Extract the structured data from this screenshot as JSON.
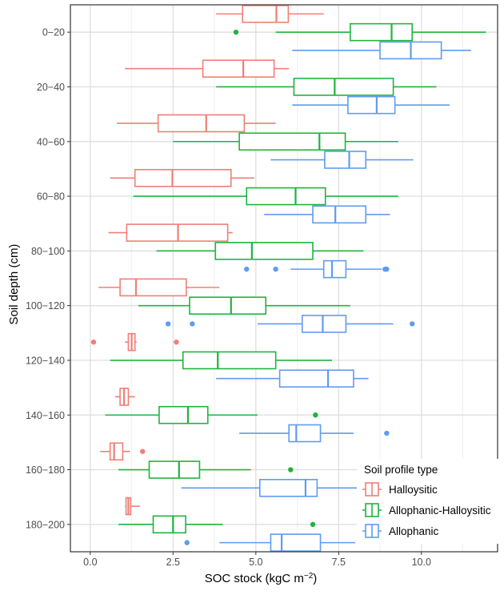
{
  "chart_data": {
    "type": "boxplot",
    "orientation": "horizontal",
    "xlabel_main": "SOC stock (kgC m",
    "xlabel_exp": "−2",
    "xlabel_close": ")",
    "ylabel": "Soil depth (cm)",
    "xlim": [
      -0.6,
      12.3
    ],
    "xticks": [
      0.0,
      2.5,
      5.0,
      7.5,
      10.0
    ],
    "xtick_labels": [
      "0.0",
      "2.5",
      "5.0",
      "7.5",
      "10.0"
    ],
    "categories": [
      "0−20",
      "20−40",
      "40−60",
      "60−80",
      "80−100",
      "100−120",
      "120−140",
      "140−160",
      "160−180",
      "180−200"
    ],
    "grid": true,
    "legend": {
      "title": "Soil profile type",
      "position": "bottom-right",
      "entries": [
        "Halloysitic",
        "Allophanic-Halloysitic",
        "Allophanic"
      ]
    },
    "series": [
      {
        "name": "Halloysitic",
        "color": "#f07f76",
        "boxes": [
          {
            "category": "0−20",
            "whisker_low": 3.8,
            "q1": 4.6,
            "median": 5.62,
            "q3": 5.98,
            "whisker_high": 7.05,
            "outliers": []
          },
          {
            "category": "20−40",
            "whisker_low": 1.05,
            "q1": 3.4,
            "median": 4.62,
            "q3": 5.55,
            "whisker_high": 6.0,
            "outliers": []
          },
          {
            "category": "40−60",
            "whisker_low": 0.8,
            "q1": 2.05,
            "median": 3.5,
            "q3": 4.65,
            "whisker_high": 5.6,
            "outliers": []
          },
          {
            "category": "60−80",
            "whisker_low": 0.6,
            "q1": 1.35,
            "median": 2.48,
            "q3": 4.25,
            "whisker_high": 4.95,
            "outliers": []
          },
          {
            "category": "80−100",
            "whisker_low": 0.55,
            "q1": 1.1,
            "median": 2.65,
            "q3": 4.15,
            "whisker_high": 4.3,
            "outliers": []
          },
          {
            "category": "100−120",
            "whisker_low": 0.25,
            "q1": 0.9,
            "median": 1.38,
            "q3": 2.9,
            "whisker_high": 3.9,
            "outliers": []
          },
          {
            "category": "120−140",
            "whisker_low": 1.05,
            "q1": 1.15,
            "median": 1.25,
            "q3": 1.35,
            "whisker_high": 1.4,
            "outliers": [
              0.1,
              2.6
            ]
          },
          {
            "category": "140−160",
            "whisker_low": 0.75,
            "q1": 0.9,
            "median": 1.02,
            "q3": 1.15,
            "whisker_high": 1.35,
            "outliers": []
          },
          {
            "category": "160−180",
            "whisker_low": 0.3,
            "q1": 0.6,
            "median": 0.72,
            "q3": 0.98,
            "whisker_high": 1.2,
            "outliers": [
              1.58
            ]
          },
          {
            "category": "180−200",
            "whisker_low": 1.05,
            "q1": 1.08,
            "median": 1.15,
            "q3": 1.22,
            "whisker_high": 1.5,
            "outliers": []
          }
        ]
      },
      {
        "name": "Allophanic-Halloysitic",
        "color": "#1fb43d",
        "boxes": [
          {
            "category": "0−20",
            "whisker_low": 5.6,
            "q1": 7.85,
            "median": 9.1,
            "q3": 9.72,
            "whisker_high": 11.95,
            "outliers": [
              4.4
            ]
          },
          {
            "category": "20−40",
            "whisker_low": 3.8,
            "q1": 6.15,
            "median": 7.38,
            "q3": 9.15,
            "whisker_high": 10.45,
            "outliers": []
          },
          {
            "category": "40−60",
            "whisker_low": 2.5,
            "q1": 4.5,
            "median": 6.92,
            "q3": 7.7,
            "whisker_high": 9.3,
            "outliers": []
          },
          {
            "category": "60−80",
            "whisker_low": 1.3,
            "q1": 4.72,
            "median": 6.2,
            "q3": 7.1,
            "whisker_high": 9.3,
            "outliers": []
          },
          {
            "category": "80−100",
            "whisker_low": 2.0,
            "q1": 3.78,
            "median": 4.88,
            "q3": 6.72,
            "whisker_high": 8.25,
            "outliers": []
          },
          {
            "category": "100−120",
            "whisker_low": 1.45,
            "q1": 3.0,
            "median": 4.25,
            "q3": 5.3,
            "whisker_high": 7.85,
            "outliers": []
          },
          {
            "category": "120−140",
            "whisker_low": 0.6,
            "q1": 2.8,
            "median": 3.85,
            "q3": 5.6,
            "whisker_high": 7.3,
            "outliers": []
          },
          {
            "category": "140−160",
            "whisker_low": 0.45,
            "q1": 2.08,
            "median": 2.95,
            "q3": 3.55,
            "whisker_high": 5.05,
            "outliers": [
              6.8
            ]
          },
          {
            "category": "160−180",
            "whisker_low": 0.85,
            "q1": 1.78,
            "median": 2.68,
            "q3": 3.3,
            "whisker_high": 4.85,
            "outliers": [
              6.05
            ]
          },
          {
            "category": "180−200",
            "whisker_low": 0.85,
            "q1": 1.9,
            "median": 2.5,
            "q3": 2.88,
            "whisker_high": 4.0,
            "outliers": [
              6.72
            ]
          }
        ]
      },
      {
        "name": "Allophanic",
        "color": "#5f9cef",
        "boxes": [
          {
            "category": "0−20",
            "whisker_low": 6.1,
            "q1": 8.75,
            "median": 9.68,
            "q3": 10.6,
            "whisker_high": 11.5,
            "outliers": []
          },
          {
            "category": "20−40",
            "whisker_low": 6.1,
            "q1": 7.78,
            "median": 8.65,
            "q3": 9.2,
            "whisker_high": 10.85,
            "outliers": []
          },
          {
            "category": "40−60",
            "whisker_low": 5.45,
            "q1": 7.08,
            "median": 7.82,
            "q3": 8.32,
            "whisker_high": 9.75,
            "outliers": []
          },
          {
            "category": "60−80",
            "whisker_low": 5.25,
            "q1": 6.72,
            "median": 7.4,
            "q3": 8.32,
            "whisker_high": 9.05,
            "outliers": []
          },
          {
            "category": "80−100",
            "whisker_low": 6.05,
            "q1": 7.05,
            "median": 7.3,
            "q3": 7.72,
            "whisker_high": 8.8,
            "outliers": [
              4.72,
              5.6,
              8.9,
              8.95
            ]
          },
          {
            "category": "100−120",
            "whisker_low": 5.05,
            "q1": 6.4,
            "median": 7.02,
            "q3": 7.72,
            "whisker_high": 9.15,
            "outliers": [
              2.35,
              3.08,
              9.72
            ]
          },
          {
            "category": "120−140",
            "whisker_low": 3.8,
            "q1": 5.72,
            "median": 7.18,
            "q3": 7.95,
            "whisker_high": 8.4,
            "outliers": []
          },
          {
            "category": "140−160",
            "whisker_low": 4.5,
            "q1": 6.0,
            "median": 6.22,
            "q3": 6.95,
            "whisker_high": 7.95,
            "outliers": [
              8.95
            ]
          },
          {
            "category": "160−180",
            "whisker_low": 2.75,
            "q1": 5.12,
            "median": 6.5,
            "q3": 6.85,
            "whisker_high": 8.1,
            "outliers": []
          },
          {
            "category": "180−200",
            "whisker_low": 3.9,
            "q1": 5.45,
            "median": 5.78,
            "q3": 6.95,
            "whisker_high": 8.0,
            "outliers": [
              2.92
            ]
          }
        ]
      }
    ]
  }
}
